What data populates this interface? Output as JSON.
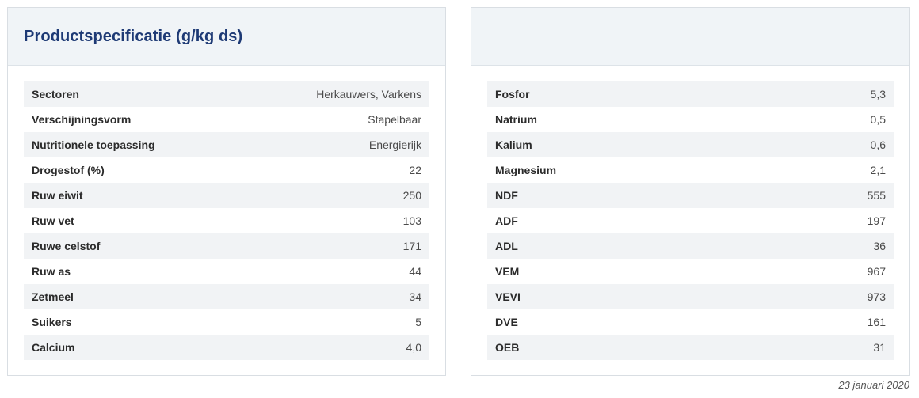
{
  "left_panel": {
    "title": "Productspecificatie (g/kg ds)",
    "rows": [
      {
        "label": "Sectoren",
        "value": "Herkauwers, Varkens"
      },
      {
        "label": "Verschijningsvorm",
        "value": "Stapelbaar"
      },
      {
        "label": "Nutritionele toepassing",
        "value": "Energierijk"
      },
      {
        "label": "Drogestof (%)",
        "value": "22"
      },
      {
        "label": "Ruw eiwit",
        "value": "250"
      },
      {
        "label": "Ruw vet",
        "value": "103"
      },
      {
        "label": "Ruwe celstof",
        "value": "171"
      },
      {
        "label": "Ruw as",
        "value": "44"
      },
      {
        "label": "Zetmeel",
        "value": "34"
      },
      {
        "label": "Suikers",
        "value": "5"
      },
      {
        "label": "Calcium",
        "value": "4,0"
      }
    ]
  },
  "right_panel": {
    "title": "",
    "rows": [
      {
        "label": "Fosfor",
        "value": "5,3"
      },
      {
        "label": "Natrium",
        "value": "0,5"
      },
      {
        "label": "Kalium",
        "value": "0,6"
      },
      {
        "label": "Magnesium",
        "value": "2,1"
      },
      {
        "label": "NDF",
        "value": "555"
      },
      {
        "label": "ADF",
        "value": "197"
      },
      {
        "label": "ADL",
        "value": "36"
      },
      {
        "label": "VEM",
        "value": "967"
      },
      {
        "label": "VEVI",
        "value": "973"
      },
      {
        "label": "DVE",
        "value": "161"
      },
      {
        "label": "OEB",
        "value": "31"
      }
    ]
  },
  "footer": {
    "date": "23 januari 2020"
  }
}
